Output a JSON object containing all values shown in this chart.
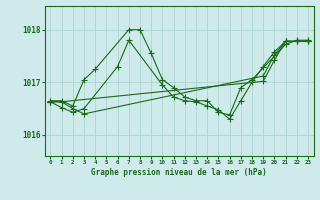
{
  "title": "Graphe pression niveau de la mer (hPa)",
  "background_color": "#ceeaea",
  "grid_color": "#aed4d4",
  "line_color": "#1a6b1a",
  "x_labels": [
    "0",
    "1",
    "2",
    "3",
    "4",
    "5",
    "6",
    "7",
    "8",
    "9",
    "10",
    "11",
    "12",
    "13",
    "14",
    "15",
    "16",
    "17",
    "18",
    "19",
    "20",
    "21",
    "22",
    "23"
  ],
  "ylim": [
    1015.6,
    1018.45
  ],
  "yticks": [
    1016,
    1017,
    1018
  ],
  "series1_x": [
    0,
    1,
    2,
    3,
    4,
    7,
    8,
    9,
    10,
    11,
    12,
    13,
    14,
    15,
    16,
    17,
    18,
    21,
    22,
    23
  ],
  "series1_y": [
    1016.65,
    1016.65,
    1016.55,
    1017.05,
    1017.25,
    1018.0,
    1018.0,
    1017.55,
    1017.05,
    1016.9,
    1016.72,
    1016.65,
    1016.65,
    1016.43,
    1016.38,
    1016.9,
    1017.05,
    1017.72,
    1017.8,
    1017.8
  ],
  "series2_x": [
    0,
    1,
    2,
    3,
    6,
    7,
    10,
    11,
    12,
    13,
    14,
    15,
    16,
    17,
    18,
    19,
    20,
    21,
    22,
    23
  ],
  "series2_y": [
    1016.63,
    1016.52,
    1016.43,
    1016.5,
    1017.3,
    1017.8,
    1016.95,
    1016.72,
    1016.65,
    1016.63,
    1016.55,
    1016.48,
    1016.3,
    1016.65,
    1017.0,
    1017.3,
    1017.58,
    1017.78,
    1017.78,
    1017.78
  ],
  "series3_x": [
    0,
    1,
    19,
    20,
    21,
    22,
    23
  ],
  "series3_y": [
    1016.63,
    1016.63,
    1017.02,
    1017.42,
    1017.78,
    1017.78,
    1017.78
  ],
  "series4_x": [
    0,
    1,
    2,
    3,
    19,
    20,
    21,
    22,
    23
  ],
  "series4_y": [
    1016.63,
    1016.63,
    1016.5,
    1016.4,
    1017.12,
    1017.52,
    1017.78,
    1017.78,
    1017.78
  ]
}
